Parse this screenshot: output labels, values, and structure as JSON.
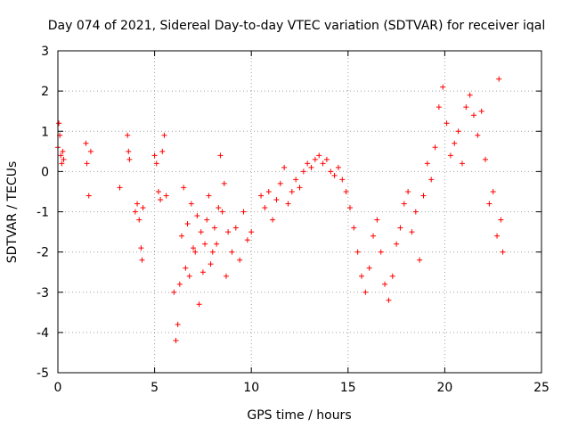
{
  "chart_data": {
    "type": "scatter",
    "title": "Day 074 of 2021, Sidereal Day-to-day VTEC variation (SDTVAR) for receiver iqal",
    "xlabel": "GPS time / hours",
    "ylabel": "SDTVAR / TECUs",
    "xlim": [
      0,
      25
    ],
    "ylim": [
      -5,
      3
    ],
    "xticks": [
      0,
      5,
      10,
      15,
      20,
      25
    ],
    "yticks": [
      -5,
      -4,
      -3,
      -2,
      -1,
      0,
      1,
      2,
      3
    ],
    "xtick_labels": [
      "0",
      "5",
      "10",
      "15",
      "20",
      "25"
    ],
    "ytick_labels": [
      "-5",
      "-4",
      "-3",
      "-2",
      "-1",
      "0",
      "1",
      "2",
      "3"
    ],
    "grid": true,
    "marker": "+",
    "color": "#ff0000",
    "series": [
      {
        "name": "SDTVAR",
        "x": [
          0.0,
          0.05,
          0.1,
          0.15,
          0.2,
          0.25,
          0.3,
          1.45,
          1.5,
          1.6,
          1.7,
          3.2,
          3.6,
          3.65,
          3.7,
          4.0,
          4.1,
          4.2,
          4.3,
          4.35,
          4.4,
          5.0,
          5.1,
          5.2,
          5.3,
          5.4,
          5.5,
          5.6,
          6.0,
          6.1,
          6.2,
          6.3,
          6.4,
          6.5,
          6.6,
          6.7,
          6.8,
          6.9,
          7.0,
          7.1,
          7.2,
          7.3,
          7.4,
          7.5,
          7.6,
          7.7,
          7.8,
          7.9,
          8.0,
          8.1,
          8.2,
          8.3,
          8.4,
          8.5,
          8.6,
          8.7,
          8.8,
          9.0,
          9.2,
          9.4,
          9.6,
          9.8,
          10.0,
          10.5,
          10.7,
          10.9,
          11.1,
          11.3,
          11.5,
          11.7,
          11.9,
          12.1,
          12.3,
          12.5,
          12.7,
          12.9,
          13.1,
          13.3,
          13.5,
          13.7,
          13.9,
          14.1,
          14.3,
          14.5,
          14.7,
          14.9,
          15.1,
          15.3,
          15.5,
          15.7,
          15.9,
          16.1,
          16.3,
          16.5,
          16.7,
          16.9,
          17.1,
          17.3,
          17.5,
          17.7,
          17.9,
          18.1,
          18.3,
          18.5,
          18.7,
          18.9,
          19.1,
          19.3,
          19.5,
          19.7,
          19.9,
          20.1,
          20.3,
          20.5,
          20.7,
          20.9,
          21.1,
          21.3,
          21.5,
          21.7,
          21.9,
          22.1,
          22.3,
          22.5,
          22.7,
          22.8,
          22.9,
          23.0
        ],
        "y": [
          0.6,
          1.2,
          0.9,
          0.4,
          0.2,
          0.5,
          0.3,
          0.7,
          0.2,
          -0.6,
          0.5,
          -0.4,
          0.9,
          0.5,
          0.3,
          -1.0,
          -0.8,
          -1.2,
          -1.9,
          -2.2,
          -0.9,
          0.4,
          0.2,
          -0.5,
          -0.7,
          0.5,
          0.9,
          -0.6,
          -3.0,
          -4.2,
          -3.8,
          -2.8,
          -1.6,
          -0.4,
          -2.4,
          -1.3,
          -2.6,
          -0.8,
          -1.9,
          -2.0,
          -1.1,
          -3.3,
          -1.5,
          -2.5,
          -1.8,
          -1.2,
          -0.6,
          -2.3,
          -2.0,
          -1.4,
          -1.8,
          -0.9,
          0.4,
          -1.0,
          -0.3,
          -2.6,
          -1.5,
          -2.0,
          -1.4,
          -2.2,
          -1.0,
          -1.7,
          -1.5,
          -0.6,
          -0.9,
          -0.5,
          -1.2,
          -0.7,
          -0.3,
          0.1,
          -0.8,
          -0.5,
          -0.2,
          -0.4,
          0.0,
          0.2,
          0.1,
          0.3,
          0.4,
          0.2,
          0.3,
          0.0,
          -0.1,
          0.1,
          -0.2,
          -0.5,
          -0.9,
          -1.4,
          -2.0,
          -2.6,
          -3.0,
          -2.4,
          -1.6,
          -1.2,
          -2.0,
          -2.8,
          -3.2,
          -2.6,
          -1.8,
          -1.4,
          -0.8,
          -0.5,
          -1.5,
          -1.0,
          -2.2,
          -0.6,
          0.2,
          -0.2,
          0.6,
          1.6,
          2.1,
          1.2,
          0.4,
          0.7,
          1.0,
          0.2,
          1.6,
          1.9,
          1.4,
          0.9,
          1.5,
          0.3,
          -0.8,
          -0.5,
          -1.6,
          2.3,
          -1.2,
          -2.0
        ]
      }
    ]
  }
}
